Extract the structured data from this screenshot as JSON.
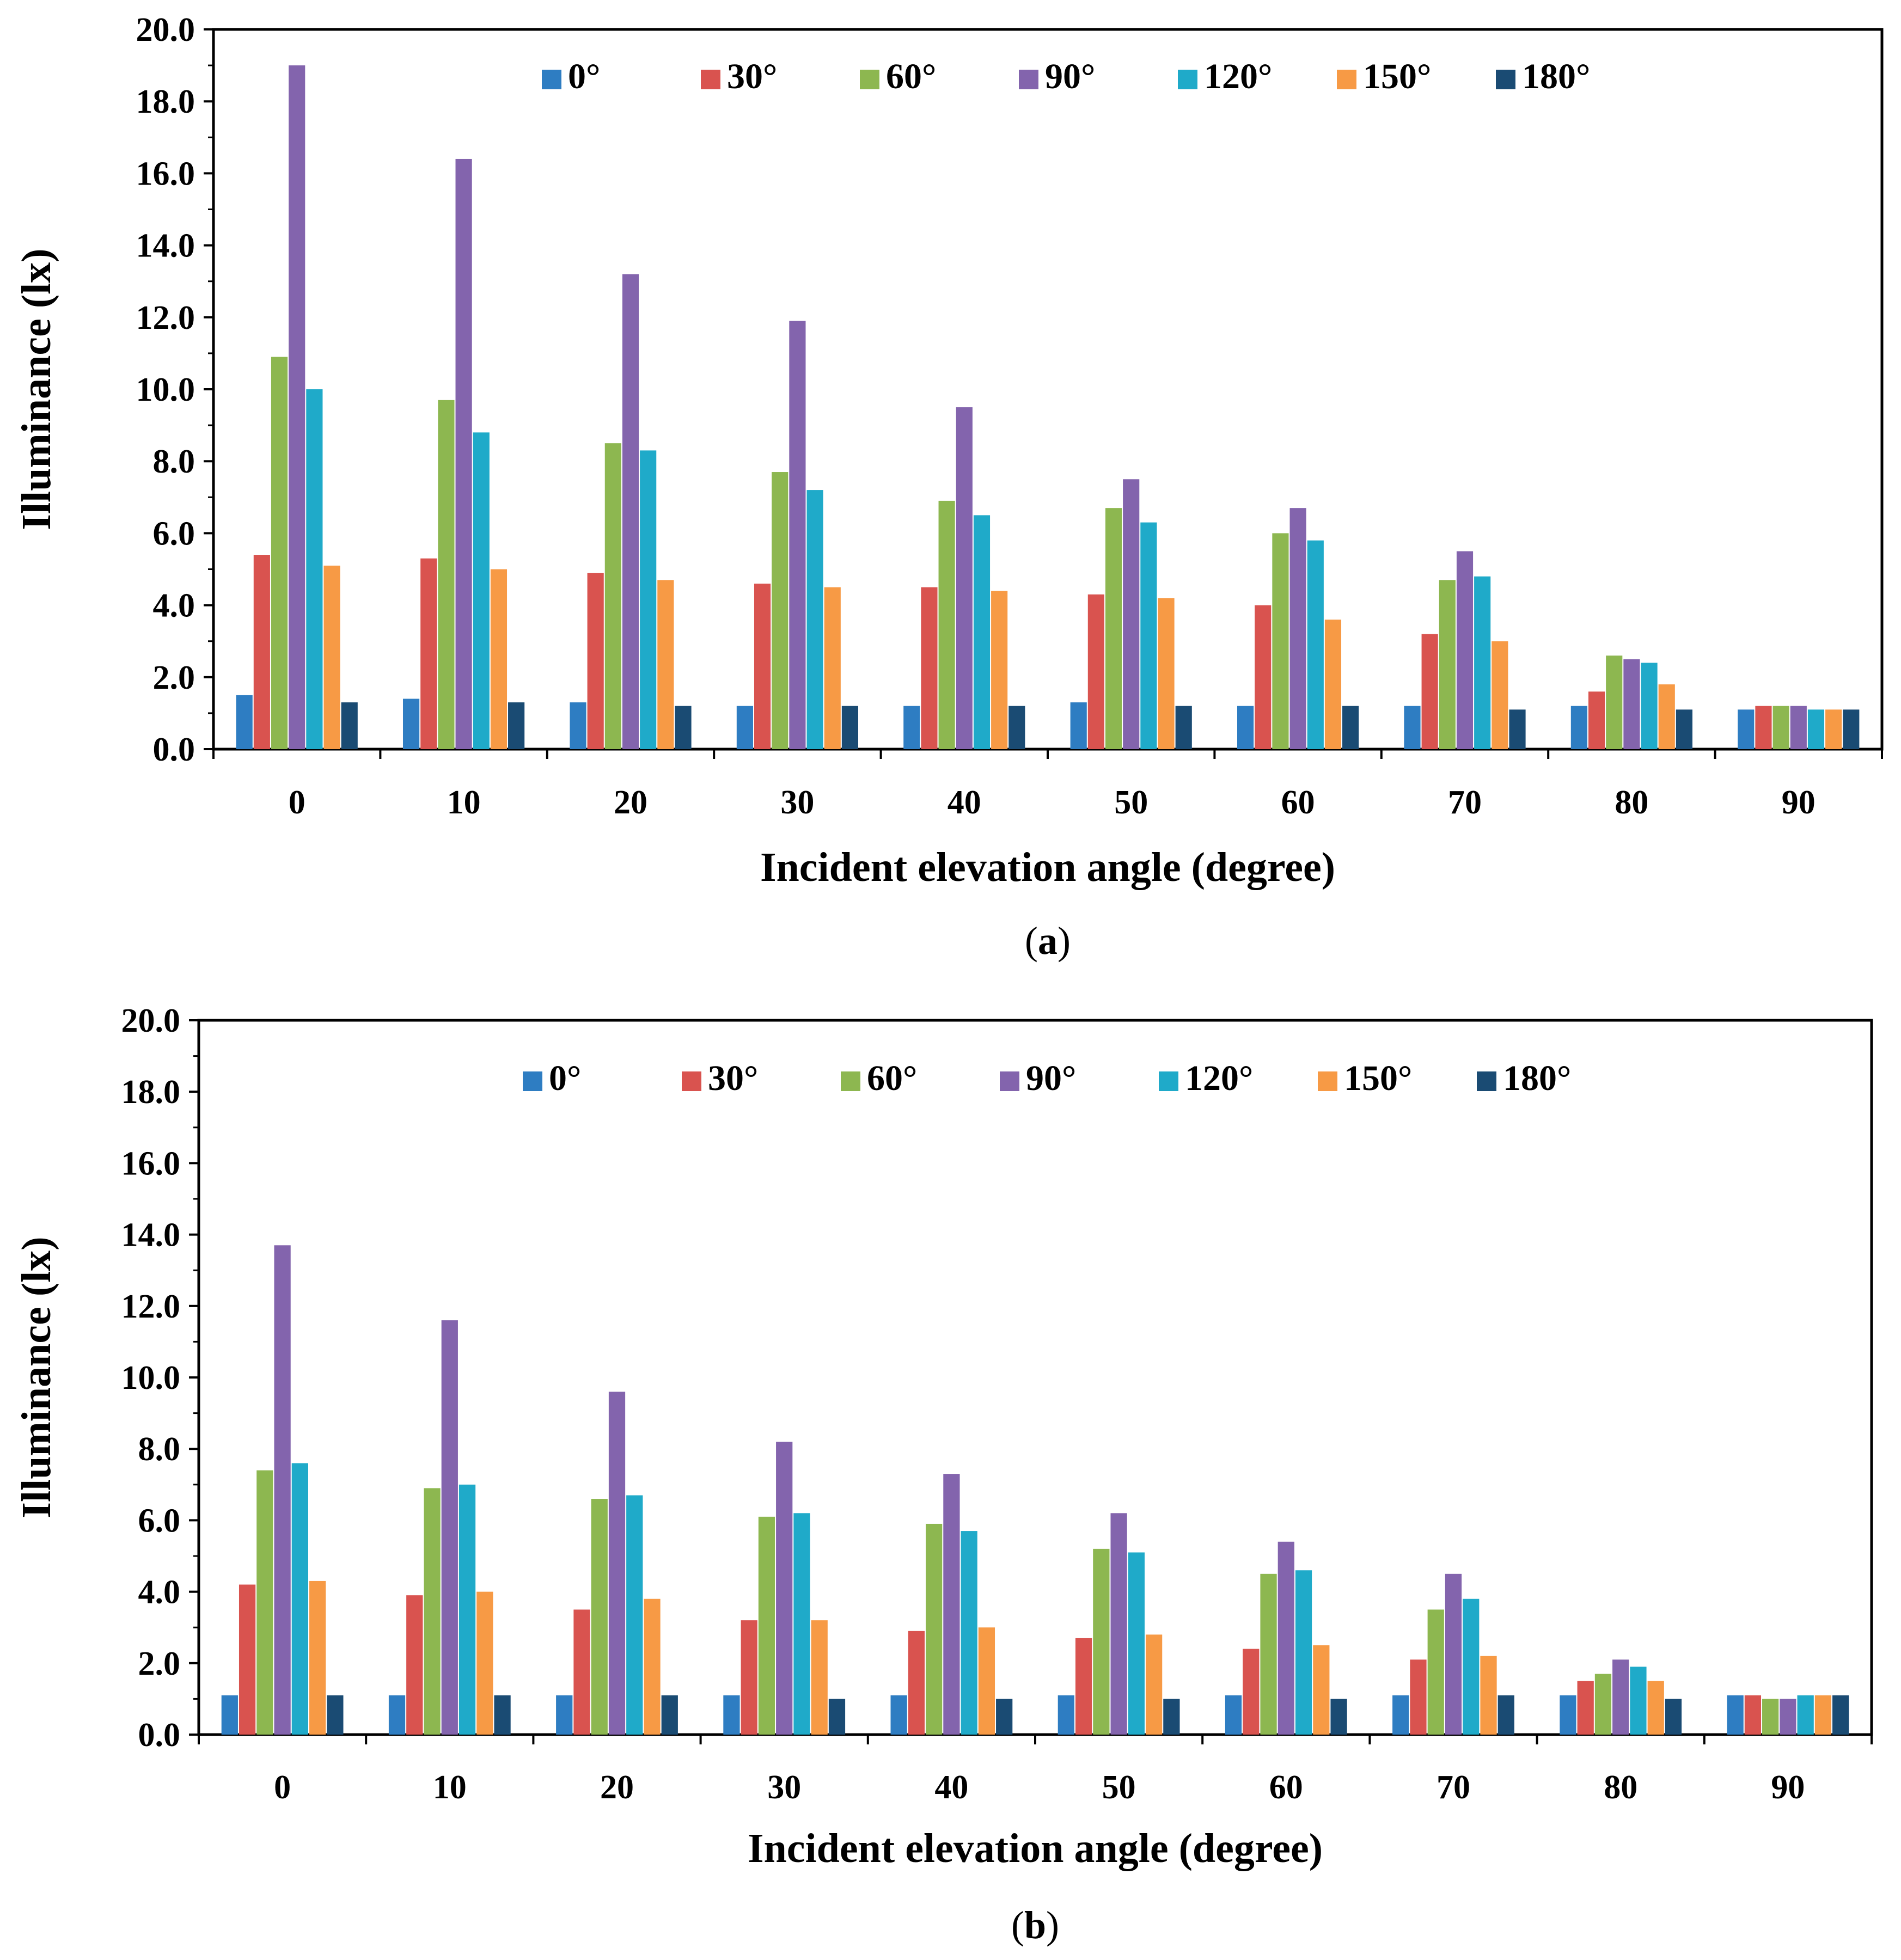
{
  "chart_data": [
    {
      "panel_label": "a",
      "type": "bar",
      "xlabel": "Incident elevation angle (degree)",
      "ylabel": "Illuminance (lx)",
      "ylim": [
        0,
        20
      ],
      "yticks": [
        "0.0",
        "2.0",
        "4.0",
        "6.0",
        "8.0",
        "10.0",
        "12.0",
        "14.0",
        "16.0",
        "18.0",
        "20.0"
      ],
      "categories": [
        "0",
        "10",
        "20",
        "30",
        "40",
        "50",
        "60",
        "70",
        "80",
        "90"
      ],
      "legend_position": "top-center",
      "series": [
        {
          "name": "0°",
          "color": "#2E7DC2",
          "values": [
            1.5,
            1.4,
            1.3,
            1.2,
            1.2,
            1.3,
            1.2,
            1.2,
            1.2,
            1.1
          ]
        },
        {
          "name": "30°",
          "color": "#D9534F",
          "values": [
            5.4,
            5.3,
            4.9,
            4.6,
            4.5,
            4.3,
            4.0,
            3.2,
            1.6,
            1.2
          ]
        },
        {
          "name": "60°",
          "color": "#8DB750",
          "values": [
            10.9,
            9.7,
            8.5,
            7.7,
            6.9,
            6.7,
            6.0,
            4.7,
            2.6,
            1.2
          ]
        },
        {
          "name": "90°",
          "color": "#8364AD",
          "values": [
            19.0,
            16.4,
            13.2,
            11.9,
            9.5,
            7.5,
            6.7,
            5.5,
            2.5,
            1.2
          ]
        },
        {
          "name": "120°",
          "color": "#1FAAC9",
          "values": [
            10.0,
            8.8,
            8.3,
            7.2,
            6.5,
            6.3,
            5.8,
            4.8,
            2.4,
            1.1
          ]
        },
        {
          "name": "150°",
          "color": "#F79A45",
          "values": [
            5.1,
            5.0,
            4.7,
            4.5,
            4.4,
            4.2,
            3.6,
            3.0,
            1.8,
            1.1
          ]
        },
        {
          "name": "180°",
          "color": "#1A4B73",
          "values": [
            1.3,
            1.3,
            1.2,
            1.2,
            1.2,
            1.2,
            1.2,
            1.1,
            1.1,
            1.1
          ]
        }
      ]
    },
    {
      "panel_label": "b",
      "type": "bar",
      "xlabel": "Incident elevation angle (degree)",
      "ylabel": "Illuminance (lx)",
      "ylim": [
        0,
        20
      ],
      "yticks": [
        "0.0",
        "2.0",
        "4.0",
        "6.0",
        "8.0",
        "10.0",
        "12.0",
        "14.0",
        "16.0",
        "18.0",
        "20.0"
      ],
      "categories": [
        "0",
        "10",
        "20",
        "30",
        "40",
        "50",
        "60",
        "70",
        "80",
        "90"
      ],
      "legend_position": "top-center",
      "series": [
        {
          "name": "0°",
          "color": "#2E7DC2",
          "values": [
            1.1,
            1.1,
            1.1,
            1.1,
            1.1,
            1.1,
            1.1,
            1.1,
            1.1,
            1.1
          ]
        },
        {
          "name": "30°",
          "color": "#D9534F",
          "values": [
            4.2,
            3.9,
            3.5,
            3.2,
            2.9,
            2.7,
            2.4,
            2.1,
            1.5,
            1.1
          ]
        },
        {
          "name": "60°",
          "color": "#8DB750",
          "values": [
            7.4,
            6.9,
            6.6,
            6.1,
            5.9,
            5.2,
            4.5,
            3.5,
            1.7,
            1.0
          ]
        },
        {
          "name": "90°",
          "color": "#8364AD",
          "values": [
            13.7,
            11.6,
            9.6,
            8.2,
            7.3,
            6.2,
            5.4,
            4.5,
            2.1,
            1.0
          ]
        },
        {
          "name": "120°",
          "color": "#1FAAC9",
          "values": [
            7.6,
            7.0,
            6.7,
            6.2,
            5.7,
            5.1,
            4.6,
            3.8,
            1.9,
            1.1
          ]
        },
        {
          "name": "150°",
          "color": "#F79A45",
          "values": [
            4.3,
            4.0,
            3.8,
            3.2,
            3.0,
            2.8,
            2.5,
            2.2,
            1.5,
            1.1
          ]
        },
        {
          "name": "180°",
          "color": "#1A4B73",
          "values": [
            1.1,
            1.1,
            1.1,
            1.0,
            1.0,
            1.0,
            1.0,
            1.1,
            1.0,
            1.1
          ]
        }
      ]
    }
  ]
}
